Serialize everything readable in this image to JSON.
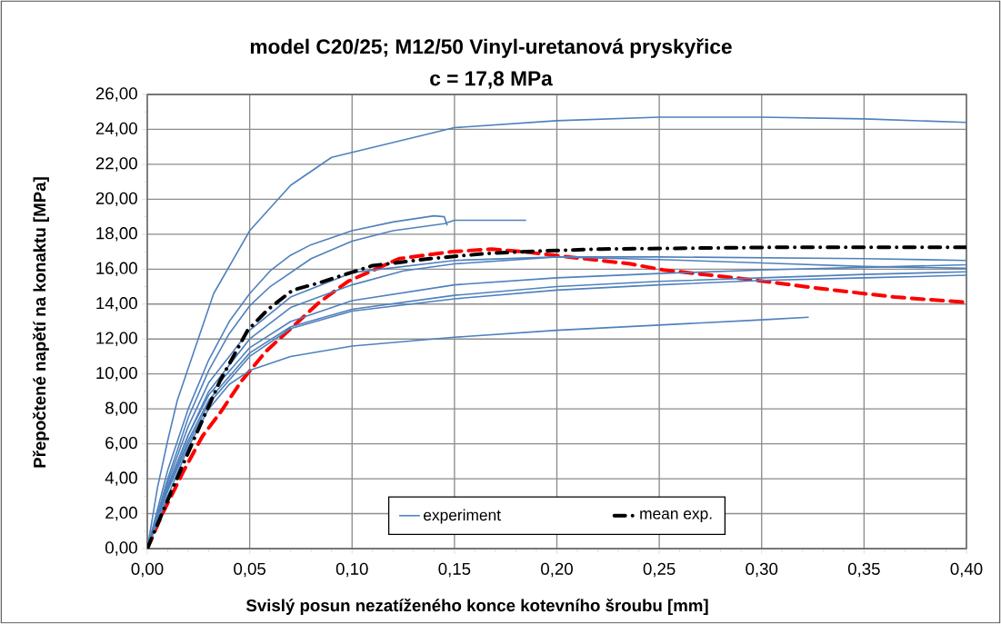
{
  "chart_data": {
    "type": "line",
    "title": "model C20/25; M12/50 Vinyl-uretanová pryskyřice",
    "subtitle": "c = 17,8 MPa",
    "xlabel": "Svislý posun nezatíženého konce kotevního šroubu [mm]",
    "ylabel": "Přepočtené napětí na konaktu [MPa]",
    "xlim": [
      0,
      0.4
    ],
    "ylim": [
      0,
      26
    ],
    "xticks": [
      {
        "value": 0,
        "label": "0,00"
      },
      {
        "value": 0.05,
        "label": "0,05"
      },
      {
        "value": 0.1,
        "label": "0,10"
      },
      {
        "value": 0.15,
        "label": "0,15"
      },
      {
        "value": 0.2,
        "label": "0,20"
      },
      {
        "value": 0.25,
        "label": "0,25"
      },
      {
        "value": 0.3,
        "label": "0,30"
      },
      {
        "value": 0.35,
        "label": "0,35"
      },
      {
        "value": 0.4,
        "label": "0,40"
      }
    ],
    "yticks": [
      {
        "value": 0,
        "label": "0,00"
      },
      {
        "value": 2,
        "label": "2,00"
      },
      {
        "value": 4,
        "label": "4,00"
      },
      {
        "value": 6,
        "label": "6,00"
      },
      {
        "value": 8,
        "label": "8,00"
      },
      {
        "value": 10,
        "label": "10,00"
      },
      {
        "value": 12,
        "label": "12,00"
      },
      {
        "value": 14,
        "label": "14,00"
      },
      {
        "value": 16,
        "label": "16,00"
      },
      {
        "value": 18,
        "label": "18,00"
      },
      {
        "value": 20,
        "label": "20,00"
      },
      {
        "value": 22,
        "label": "22,00"
      },
      {
        "value": 24,
        "label": "24,00"
      },
      {
        "value": 26,
        "label": "26,00"
      }
    ],
    "grid": true,
    "legend": "bottom",
    "marker": "none",
    "series": [
      {
        "color": "#ff0000",
        "line_style": "dashed",
        "x": [
          0,
          0.007,
          0.018,
          0.027,
          0.036,
          0.046,
          0.058,
          0.071,
          0.084,
          0.098,
          0.123,
          0.149,
          0.168,
          0.183,
          0.202,
          0.236,
          0.252,
          0.291,
          0.328,
          0.365,
          0.4
        ],
        "values": [
          0,
          1.9,
          4.5,
          6.45,
          7.85,
          9.6,
          11.3,
          12.7,
          14.1,
          15.3,
          16.6,
          17.0,
          17.15,
          17.0,
          16.75,
          16.3,
          15.95,
          15.45,
          14.9,
          14.4,
          14.1
        ]
      },
      {
        "name": "experiment",
        "color": "#4f81bd",
        "line_style": "solid",
        "x": [
          0,
          0.005,
          0.01,
          0.0147,
          0.0324,
          0.05,
          0.07,
          0.09,
          0.15,
          0.2,
          0.25,
          0.3,
          0.35,
          0.4
        ],
        "values": [
          0,
          3.5,
          6.2,
          8.5,
          14.6,
          18.2,
          20.8,
          22.4,
          24.1,
          24.5,
          24.7,
          24.7,
          24.6,
          24.4
        ]
      },
      {
        "color": "#4f81bd",
        "line_style": "solid",
        "x": [
          0,
          0.01,
          0.02,
          0.03,
          0.04,
          0.05,
          0.06,
          0.07,
          0.08,
          0.1,
          0.12,
          0.14,
          0.145,
          0.1465
        ],
        "values": [
          0,
          4.5,
          8,
          10.8,
          13,
          14.6,
          15.9,
          16.8,
          17.4,
          18.2,
          18.7,
          19.05,
          19.0,
          18.5
        ]
      },
      {
        "color": "#4f81bd",
        "line_style": "solid",
        "x": [
          0,
          0.01,
          0.02,
          0.03,
          0.04,
          0.05,
          0.06,
          0.08,
          0.1,
          0.12,
          0.145,
          0.15,
          0.185
        ],
        "values": [
          0,
          4,
          7.5,
          10.2,
          12.3,
          13.9,
          15.0,
          16.6,
          17.6,
          18.2,
          18.6,
          18.8,
          18.8
        ]
      },
      {
        "color": "#4f81bd",
        "line_style": "solid",
        "x": [
          0,
          0.01,
          0.02,
          0.03,
          0.05,
          0.07,
          0.1,
          0.15,
          0.2,
          0.25,
          0.3,
          0.35,
          0.4
        ],
        "values": [
          0,
          3.8,
          7,
          9.5,
          12.5,
          14.4,
          15.8,
          16.5,
          16.7,
          16.7,
          16.65,
          16.6,
          16.5
        ]
      },
      {
        "color": "#4f81bd",
        "line_style": "solid",
        "x": [
          0,
          0.01,
          0.02,
          0.03,
          0.05,
          0.07,
          0.1,
          0.125,
          0.15,
          0.2,
          0.25,
          0.3,
          0.35,
          0.4
        ],
        "values": [
          0,
          3.5,
          6.5,
          9,
          12,
          13.8,
          15.1,
          15.9,
          16.3,
          16.7,
          16.55,
          16.35,
          16.15,
          16.05
        ]
      },
      {
        "color": "#4f81bd",
        "line_style": "solid",
        "x": [
          0,
          0.01,
          0.02,
          0.03,
          0.05,
          0.07,
          0.1,
          0.15,
          0.2,
          0.25,
          0.3,
          0.35,
          0.4
        ],
        "values": [
          0,
          3.6,
          6.5,
          8.8,
          11.5,
          13.0,
          14.2,
          15.1,
          15.5,
          15.75,
          15.95,
          16.1,
          16.25
        ]
      },
      {
        "color": "#4f81bd",
        "line_style": "solid",
        "x": [
          0,
          0.01,
          0.02,
          0.03,
          0.05,
          0.07,
          0.1,
          0.15,
          0.2,
          0.25,
          0.3,
          0.35,
          0.4
        ],
        "values": [
          0,
          3.4,
          6.2,
          8.5,
          11.2,
          12.7,
          13.7,
          14.5,
          15.0,
          15.3,
          15.5,
          15.7,
          15.85
        ]
      },
      {
        "color": "#4f81bd",
        "line_style": "solid",
        "x": [
          0,
          0.01,
          0.02,
          0.03,
          0.05,
          0.07,
          0.1,
          0.15,
          0.2,
          0.25,
          0.3,
          0.35,
          0.4
        ],
        "values": [
          0,
          3.3,
          6,
          8.3,
          11,
          12.6,
          13.6,
          14.3,
          14.8,
          15.1,
          15.35,
          15.5,
          15.65
        ]
      },
      {
        "color": "#4f81bd",
        "line_style": "solid",
        "x": [
          0,
          0.01,
          0.02,
          0.03,
          0.04,
          0.05,
          0.07,
          0.1,
          0.15,
          0.2,
          0.25,
          0.3,
          0.323
        ],
        "values": [
          0,
          3,
          5.8,
          8,
          9.4,
          10.2,
          11,
          11.6,
          12.1,
          12.5,
          12.8,
          13.1,
          13.25
        ]
      },
      {
        "name": "mean exp.",
        "color": "#000000",
        "line_style": "dashdot",
        "x": [
          0,
          0.0115,
          0.0235,
          0.0355,
          0.049,
          0.059,
          0.071,
          0.0835,
          0.11,
          0.138,
          0.166,
          0.194,
          0.222,
          0.308,
          0.392,
          0.4
        ],
        "values": [
          0,
          3.2,
          6.45,
          9.6,
          12.5,
          13.7,
          14.8,
          15.2,
          16.2,
          16.6,
          16.9,
          17.05,
          17.15,
          17.25,
          17.25,
          17.25
        ]
      }
    ]
  }
}
